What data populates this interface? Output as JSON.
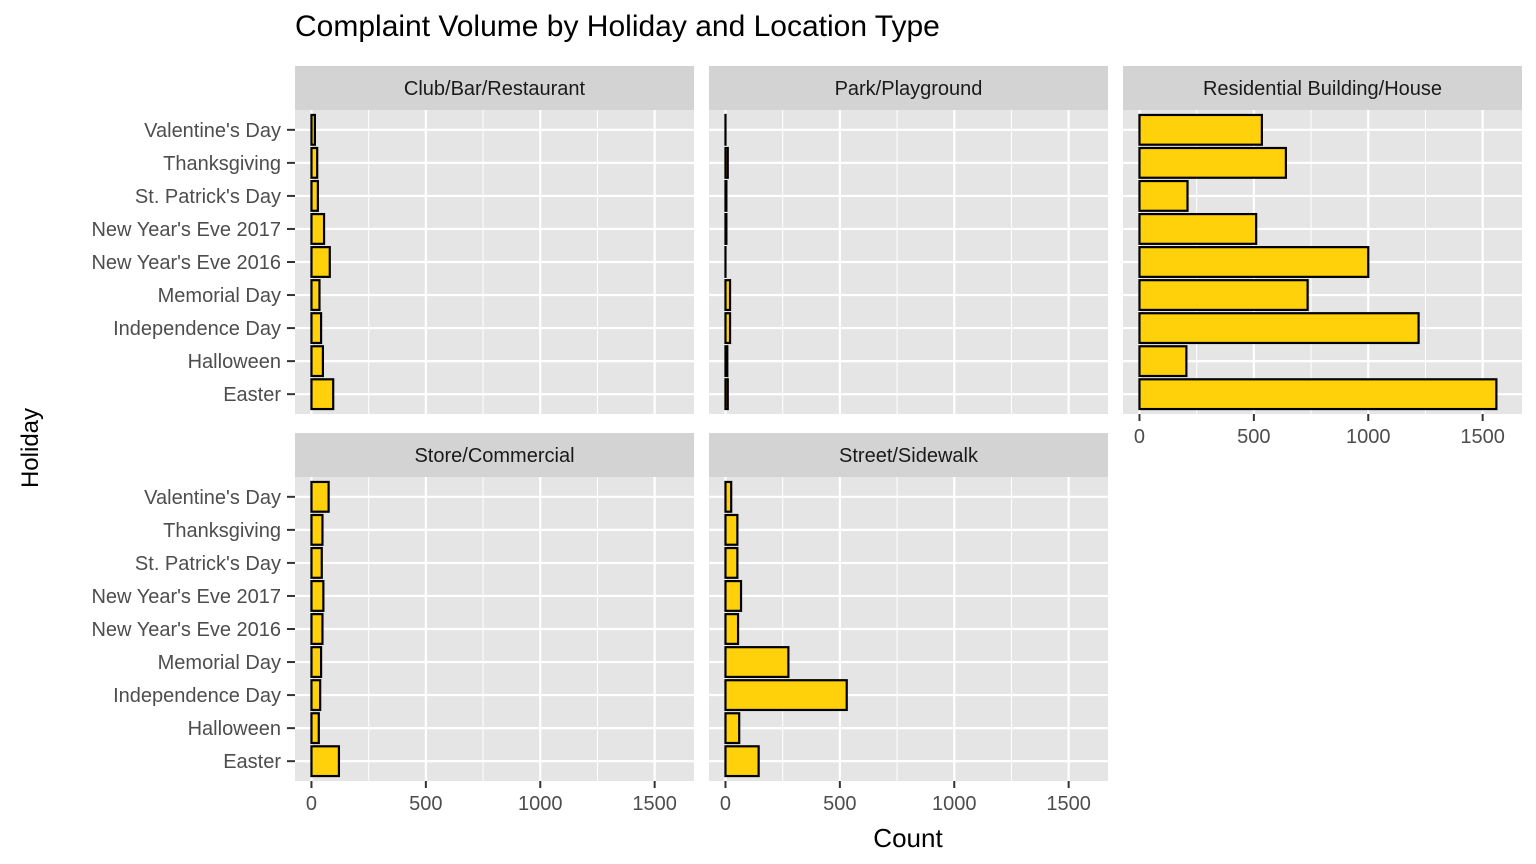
{
  "chart_data": {
    "type": "bar",
    "orientation": "horizontal",
    "faceted": true,
    "title": "Complaint Volume by Holiday and Location Type",
    "xlabel": "Count",
    "ylabel": "Holiday",
    "xlim": [
      0,
      1600
    ],
    "x_ticks": [
      0,
      500,
      1000,
      1500
    ],
    "categories": [
      "Easter",
      "Halloween",
      "Independence Day",
      "Memorial Day",
      "New Year's Eve 2016",
      "New Year's Eve 2017",
      "St. Patrick's Day",
      "Thanksgiving",
      "Valentine's Day"
    ],
    "grid": true,
    "colors": {
      "bar_fill": "#FFD10A",
      "bar_stroke": "#000000",
      "panel_bg": "#E5E5E5",
      "strip_bg": "#D3D3D3",
      "grid": "#FFFFFF"
    },
    "facets": [
      {
        "name": "Club/Bar/Restaurant",
        "values": [
          95,
          50,
          42,
          35,
          80,
          55,
          28,
          25,
          15
        ]
      },
      {
        "name": "Park/Playground",
        "values": [
          10,
          8,
          20,
          20,
          0,
          4,
          4,
          10,
          0
        ]
      },
      {
        "name": "Residential Building/House",
        "values": [
          1560,
          205,
          1220,
          735,
          1000,
          510,
          210,
          640,
          535
        ]
      },
      {
        "name": "Store/Commercial",
        "values": [
          120,
          32,
          38,
          42,
          48,
          52,
          45,
          48,
          75
        ]
      },
      {
        "name": "Street/Sidewalk",
        "values": [
          145,
          60,
          530,
          275,
          55,
          68,
          52,
          52,
          25
        ]
      }
    ]
  }
}
